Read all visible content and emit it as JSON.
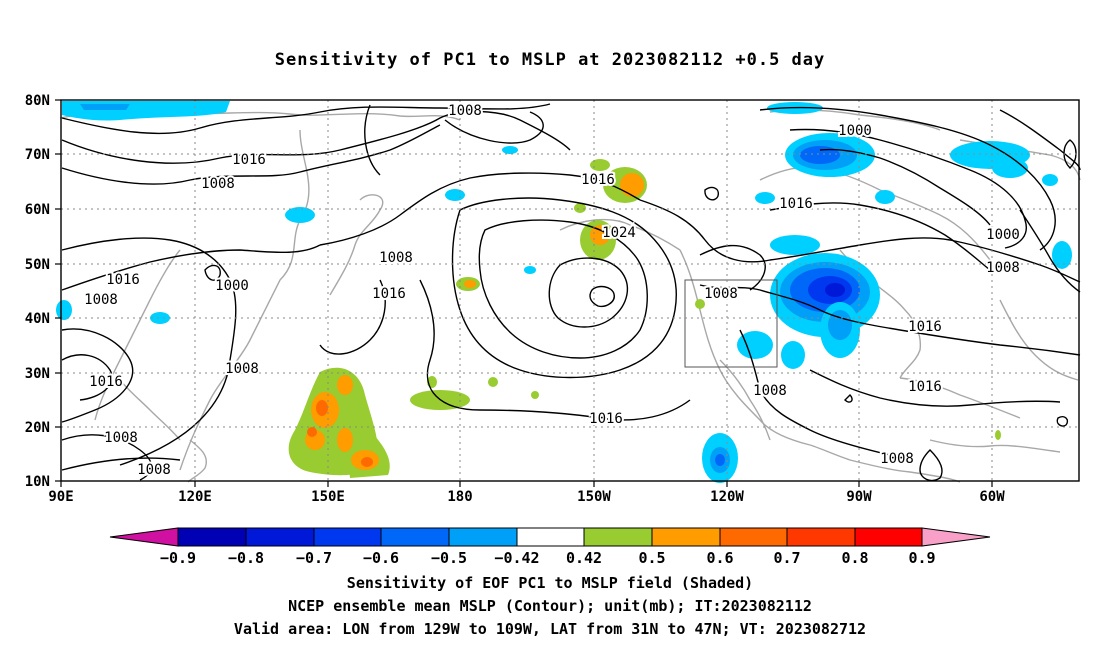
{
  "title": "Sensitivity of PC1 to MSLP at 2023082112 +0.5 day",
  "latitude_labels": [
    "80N",
    "70N",
    "60N",
    "50N",
    "40N",
    "30N",
    "20N",
    "10N"
  ],
  "longitude_labels": [
    "90E",
    "120E",
    "150E",
    "180",
    "150W",
    "120W",
    "90W",
    "60W"
  ],
  "contour_labels": [
    {
      "id": "c1",
      "text": "1008"
    },
    {
      "id": "c2",
      "text": "1016"
    },
    {
      "id": "c3",
      "text": "1008"
    },
    {
      "id": "c4",
      "text": "1016"
    },
    {
      "id": "c5",
      "text": "1008"
    },
    {
      "id": "c6",
      "text": "1000"
    },
    {
      "id": "c7",
      "text": "1008"
    },
    {
      "id": "c8",
      "text": "1016"
    },
    {
      "id": "c9",
      "text": "1008"
    },
    {
      "id": "c10",
      "text": "1016"
    },
    {
      "id": "c11",
      "text": "1024"
    },
    {
      "id": "c12",
      "text": "1016"
    },
    {
      "id": "c13",
      "text": "1008"
    },
    {
      "id": "c14",
      "text": "1000"
    },
    {
      "id": "c15",
      "text": "1016"
    },
    {
      "id": "c16",
      "text": "1000"
    },
    {
      "id": "c17",
      "text": "1008"
    },
    {
      "id": "c18",
      "text": "1016"
    },
    {
      "id": "c19",
      "text": "1008"
    },
    {
      "id": "c20",
      "text": "1016"
    },
    {
      "id": "c21",
      "text": "1008"
    },
    {
      "id": "c22",
      "text": "1016"
    },
    {
      "id": "c23",
      "text": "1008"
    },
    {
      "id": "c24",
      "text": "1008"
    }
  ],
  "colorbar": {
    "colors": [
      "#d010a0",
      "#0000b4",
      "#0018d8",
      "#0038f0",
      "#0068f8",
      "#00a0f8",
      "#00d0ff",
      "#ffffff",
      "#98cc30",
      "#ff9c00",
      "#ff6a00",
      "#ff3800",
      "#ff0000",
      "#f8a0c8"
    ],
    "labels": [
      "−0.9",
      "−0.8",
      "−0.7",
      "−0.6",
      "−0.5",
      "−0.42",
      "0.42",
      "0.5",
      "0.6",
      "0.7",
      "0.8",
      "0.9"
    ]
  },
  "caption": {
    "line1": "Sensitivity of EOF PC1 to MSLP field (Shaded)",
    "line2": "NCEP ensemble mean MSLP (Contour); unit(mb); IT:2023082112",
    "line3": "Valid area: LON from 129W to 109W, LAT from 31N to 47N; VT: 2023082712"
  }
}
